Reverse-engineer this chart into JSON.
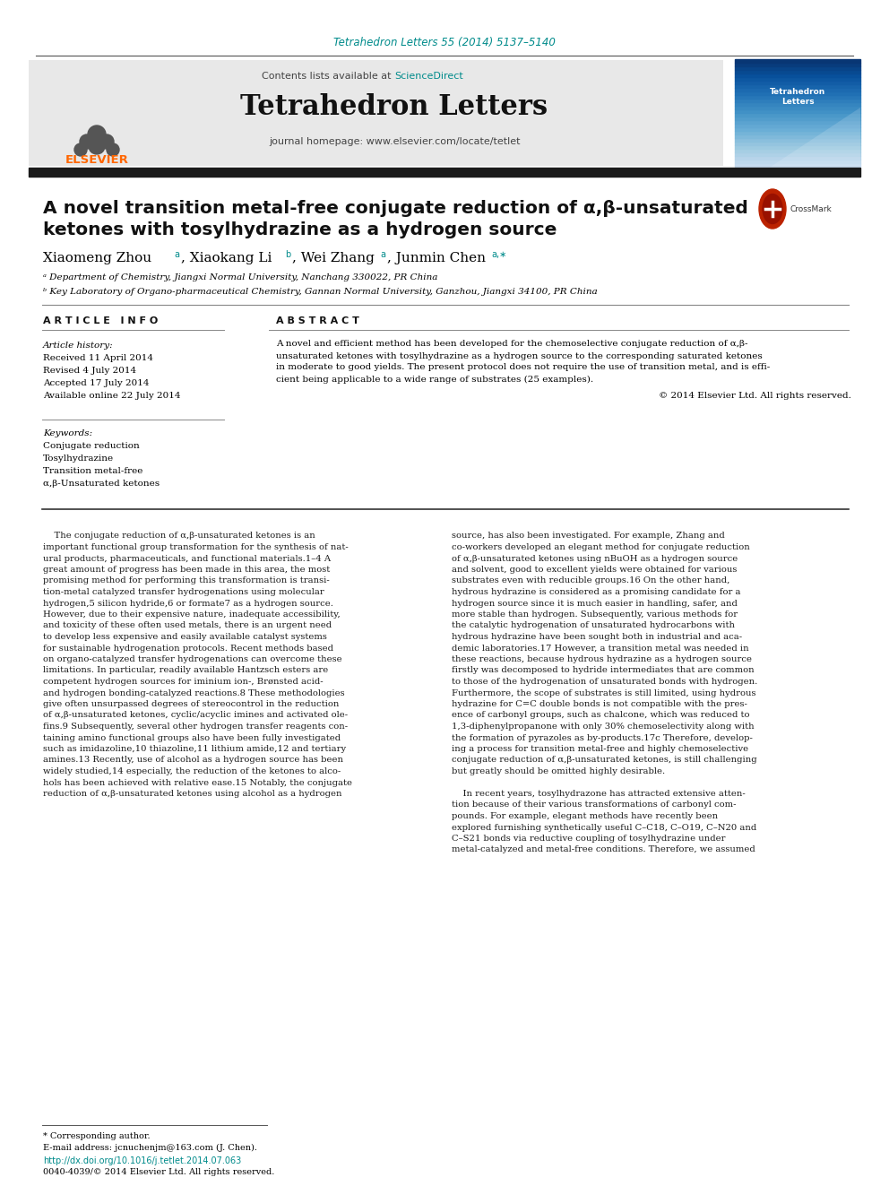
{
  "journal_citation": "Tetrahedron Letters 55 (2014) 5137–5140",
  "contents_label": "Contents lists available at ",
  "sciencedirect": "ScienceDirect",
  "journal_name": "Tetrahedron Letters",
  "journal_homepage": "journal homepage: www.elsevier.com/locate/tetlet",
  "elsevier_text": "ELSEVIER",
  "title_line1": "A novel transition metal-free conjugate reduction of α,β-unsaturated",
  "title_line2": "ketones with tosylhydrazine as a hydrogen source",
  "authors_part1": "Xiaomeng Zhou",
  "authors_part2": ", Xiaokang Li",
  "authors_part3": ", Wei Zhang",
  "authors_part4": ", Junmin Chen",
  "affil_a": "ᵃ Department of Chemistry, Jiangxi Normal University, Nanchang 330022, PR China",
  "affil_b": "ᵇ Key Laboratory of Organo-pharmaceutical Chemistry, Gannan Normal University, Ganzhou, Jiangxi 34100, PR China",
  "article_info_header": "A R T I C L E   I N F O",
  "abstract_header": "A B S T R A C T",
  "article_history_label": "Article history:",
  "received": "Received 11 April 2014",
  "revised": "Revised 4 July 2014",
  "accepted": "Accepted 17 July 2014",
  "available": "Available online 22 July 2014",
  "keywords_label": "Keywords:",
  "kw1": "Conjugate reduction",
  "kw2": "Tosylhydrazine",
  "kw3": "Transition metal-free",
  "kw4": "α,β-Unsaturated ketones",
  "abstract_lines": [
    "A novel and efficient method has been developed for the chemoselective conjugate reduction of α,β-",
    "unsaturated ketones with tosylhydrazine as a hydrogen source to the corresponding saturated ketones",
    "in moderate to good yields. The present protocol does not require the use of transition metal, and is effi-",
    "cient being applicable to a wide range of substrates (25 examples)."
  ],
  "copyright": "© 2014 Elsevier Ltd. All rights reserved.",
  "left_body": [
    "    The conjugate reduction of α,β-unsaturated ketones is an",
    "important functional group transformation for the synthesis of nat-",
    "ural products, pharmaceuticals, and functional materials.1–4 A",
    "great amount of progress has been made in this area, the most",
    "promising method for performing this transformation is transi-",
    "tion-metal catalyzed transfer hydrogenations using molecular",
    "hydrogen,5 silicon hydride,6 or formate7 as a hydrogen source.",
    "However, due to their expensive nature, inadequate accessibility,",
    "and toxicity of these often used metals, there is an urgent need",
    "to develop less expensive and easily available catalyst systems",
    "for sustainable hydrogenation protocols. Recent methods based",
    "on organo-catalyzed transfer hydrogenations can overcome these",
    "limitations. In particular, readily available Hantzsch esters are",
    "competent hydrogen sources for iminium ion-, Brønsted acid-",
    "and hydrogen bonding-catalyzed reactions.8 These methodologies",
    "give often unsurpassed degrees of stereocontrol in the reduction",
    "of α,β-unsaturated ketones, cyclic/acyclic imines and activated ole-",
    "fins.9 Subsequently, several other hydrogen transfer reagents con-",
    "taining amino functional groups also have been fully investigated",
    "such as imidazoline,10 thiazoline,11 lithium amide,12 and tertiary",
    "amines.13 Recently, use of alcohol as a hydrogen source has been",
    "widely studied,14 especially, the reduction of the ketones to alco-",
    "hols has been achieved with relative ease.15 Notably, the conjugate",
    "reduction of α,β-unsaturated ketones using alcohol as a hydrogen"
  ],
  "right_body": [
    "source, has also been investigated. For example, Zhang and",
    "co-workers developed an elegant method for conjugate reduction",
    "of α,β-unsaturated ketones using nBuOH as a hydrogen source",
    "and solvent, good to excellent yields were obtained for various",
    "substrates even with reducible groups.16 On the other hand,",
    "hydrous hydrazine is considered as a promising candidate for a",
    "hydrogen source since it is much easier in handling, safer, and",
    "more stable than hydrogen. Subsequently, various methods for",
    "the catalytic hydrogenation of unsaturated hydrocarbons with",
    "hydrous hydrazine have been sought both in industrial and aca-",
    "demic laboratories.17 However, a transition metal was needed in",
    "these reactions, because hydrous hydrazine as a hydrogen source",
    "firstly was decomposed to hydride intermediates that are common",
    "to those of the hydrogenation of unsaturated bonds with hydrogen.",
    "Furthermore, the scope of substrates is still limited, using hydrous",
    "hydrazine for C=C double bonds is not compatible with the pres-",
    "ence of carbonyl groups, such as chalcone, which was reduced to",
    "1,3-diphenylpropanone with only 30% chemoselectivity along with",
    "the formation of pyrazoles as by-products.17c Therefore, develop-",
    "ing a process for transition metal-free and highly chemoselective",
    "conjugate reduction of α,β-unsaturated ketones, is still challenging",
    "but greatly should be omitted highly desirable.",
    "",
    "    In recent years, tosylhydrazone has attracted extensive atten-",
    "tion because of their various transformations of carbonyl com-",
    "pounds. For example, elegant methods have recently been",
    "explored furnishing synthetically useful C–C18, C–O19, C–N20 and",
    "C–S21 bonds via reductive coupling of tosylhydrazine under",
    "metal-catalyzed and metal-free conditions. Therefore, we assumed"
  ],
  "footnote_corresponding": "* Corresponding author.",
  "footnote_email": "E-mail address: jcnuchenjm@163.com (J. Chen).",
  "doi_text": "http://dx.doi.org/10.1016/j.tetlet.2014.07.063",
  "issn_text": "0040-4039/© 2014 Elsevier Ltd. All rights reserved.",
  "bg_color": "#ffffff",
  "header_bg": "#e8e8e8",
  "black_bar_color": "#1a1a1a",
  "teal_color": "#008B8B",
  "orange_color": "#FF6600",
  "text_color": "#000000",
  "body_text_color": "#1a1a1a"
}
